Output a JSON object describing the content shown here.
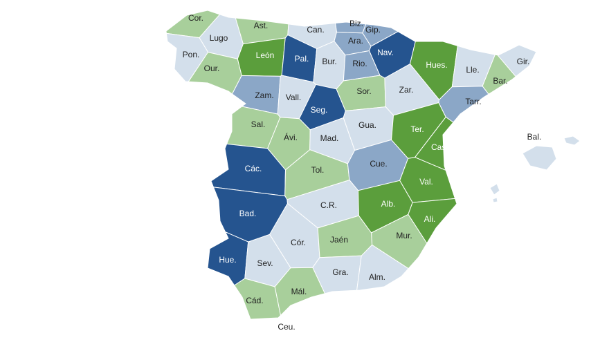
{
  "map": {
    "provinces": [
      {
        "label": "Cor.",
        "color": "#a8cf9b"
      },
      {
        "label": "Lugo",
        "color": "#d3dfeb"
      },
      {
        "label": "Ast.",
        "color": "#a8cf9b"
      },
      {
        "label": "Can.",
        "color": "#d3dfeb"
      },
      {
        "label": "Biz.",
        "color": "#8ba7c7"
      },
      {
        "label": "Gip.",
        "color": "#8ba7c7"
      },
      {
        "label": "Ara.",
        "color": "#8ba7c7"
      },
      {
        "label": "Nav.",
        "color": "#25548f"
      },
      {
        "label": "León",
        "color": "#5b9e3c"
      },
      {
        "label": "Pon.",
        "color": "#d3dfeb"
      },
      {
        "label": "Our.",
        "color": "#a8cf9b"
      },
      {
        "label": "Pal.",
        "color": "#25548f"
      },
      {
        "label": "Bur.",
        "color": "#d3dfeb"
      },
      {
        "label": "Rio.",
        "color": "#8ba7c7"
      },
      {
        "label": "Hues.",
        "color": "#5b9e3c"
      },
      {
        "label": "Lle.",
        "color": "#d3dfeb"
      },
      {
        "label": "Gir.",
        "color": "#d3dfeb"
      },
      {
        "label": "Bar.",
        "color": "#a8cf9b"
      },
      {
        "label": "Zam.",
        "color": "#8ba7c7"
      },
      {
        "label": "Vall.",
        "color": "#d3dfeb"
      },
      {
        "label": "Seg.",
        "color": "#25548f"
      },
      {
        "label": "Sor.",
        "color": "#a8cf9b"
      },
      {
        "label": "Zar.",
        "color": "#d3dfeb"
      },
      {
        "label": "Tarr.",
        "color": "#8ba7c7"
      },
      {
        "label": "Sal.",
        "color": "#a8cf9b"
      },
      {
        "label": "Ávi.",
        "color": "#a8cf9b"
      },
      {
        "label": "Gua.",
        "color": "#d3dfeb"
      },
      {
        "label": "Mad.",
        "color": "#d3dfeb"
      },
      {
        "label": "Ter.",
        "color": "#5b9e3c"
      },
      {
        "label": "Cast.",
        "color": "#5b9e3c"
      },
      {
        "label": "Các.",
        "color": "#25548f"
      },
      {
        "label": "Tol.",
        "color": "#a8cf9b"
      },
      {
        "label": "Cue.",
        "color": "#8ba7c7"
      },
      {
        "label": "Val.",
        "color": "#5b9e3c"
      },
      {
        "label": "Bad.",
        "color": "#25548f"
      },
      {
        "label": "C.R.",
        "color": "#d3dfeb"
      },
      {
        "label": "Alb.",
        "color": "#5b9e3c"
      },
      {
        "label": "Ali.",
        "color": "#5b9e3c"
      },
      {
        "label": "Mur.",
        "color": "#a8cf9b"
      },
      {
        "label": "Cór.",
        "color": "#d3dfeb"
      },
      {
        "label": "Jaén",
        "color": "#a8cf9b"
      },
      {
        "label": "Hue.",
        "color": "#25548f"
      },
      {
        "label": "Sev.",
        "color": "#d3dfeb"
      },
      {
        "label": "Gra.",
        "color": "#d3dfeb"
      },
      {
        "label": "Alm.",
        "color": "#d3dfeb"
      },
      {
        "label": "Cád.",
        "color": "#a8cf9b"
      },
      {
        "label": "Mál.",
        "color": "#a8cf9b"
      },
      {
        "label": "Bal.",
        "color": "#d3dfeb"
      },
      {
        "label": "Ceu.",
        "color": "#d3dfeb"
      }
    ]
  }
}
